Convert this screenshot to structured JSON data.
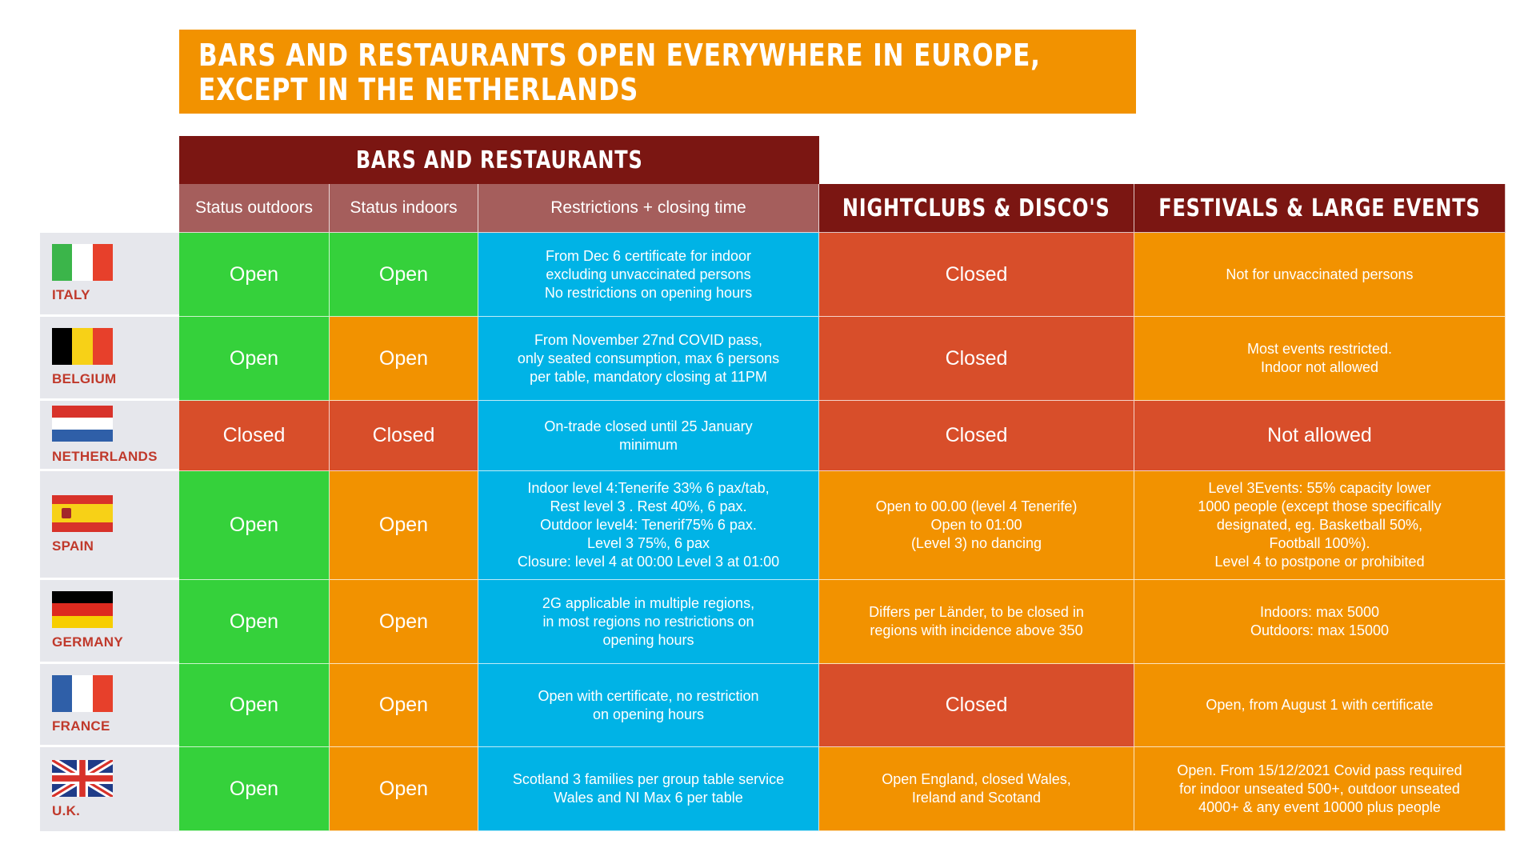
{
  "title": {
    "line1": "BARS AND RESTAURANTS OPEN EVERYWHERE IN EUROPE,",
    "line2": "EXCEPT IN THE NETHERLANDS"
  },
  "headers": {
    "bars": "BARS AND RESTAURANTS",
    "status_outdoors": "Status outdoors",
    "status_indoors": "Status indoors",
    "restrictions": "Restrictions + closing time",
    "nightclubs": "NIGHTCLUBS & DISCO'S",
    "festivals": "FESTIVALS & LARGE EVENTS"
  },
  "colors": {
    "open_green": "#35d13b",
    "open_orange": "#f29200",
    "closed_red": "#d84e2a",
    "restrictions_blue": "#00b3e6",
    "header_dark_red": "#7b1612",
    "title_orange": "#f29200"
  },
  "rows": [
    {
      "country": "ITALY",
      "outdoors": "Open",
      "indoors": "Open",
      "restrictions": "From Dec 6 certificate for indoor\nexcluding unvaccinated persons\nNo restrictions on opening hours",
      "nightclubs": "Closed",
      "festivals": "Not for unvaccinated persons"
    },
    {
      "country": "BELGIUM",
      "outdoors": "Open",
      "indoors": "Open",
      "restrictions": "From November 27nd COVID pass,\nonly seated consumption, max 6 persons\nper table, mandatory closing at 11PM",
      "nightclubs": "Closed",
      "festivals": "Most events restricted.\nIndoor not allowed"
    },
    {
      "country": "NETHERLANDS",
      "outdoors": "Closed",
      "indoors": "Closed",
      "restrictions": "On-trade closed until 25 January\nminimum",
      "nightclubs": "Closed",
      "festivals": "Not allowed"
    },
    {
      "country": "SPAIN",
      "outdoors": "Open",
      "indoors": "Open",
      "restrictions": "Indoor level 4:Tenerife  33% 6 pax/tab,\nRest level 3 . Rest 40%, 6 pax.\nOutdoor level4: Tenerif75% 6 pax.\nLevel 3  75%, 6 pax\nClosure: level 4 at 00:00 Level 3 at 01:00",
      "nightclubs": "Open to 00.00 (level 4 Tenerife)\nOpen to 01:00\n(Level 3) no dancing",
      "festivals": "Level 3Events: 55% capacity lower\n1000 people (except those specifically\ndesignated, eg. Basketball 50%,\nFootball 100%).\nLevel 4 to postpone or prohibited"
    },
    {
      "country": "GERMANY",
      "outdoors": "Open",
      "indoors": "Open",
      "restrictions": "2G applicable in multiple regions,\nin most regions no restrictions on\nopening hours",
      "nightclubs": "Differs per Länder, to be closed in\nregions with incidence above 350",
      "festivals": "Indoors: max 5000\nOutdoors: max 15000"
    },
    {
      "country": "FRANCE",
      "outdoors": "Open",
      "indoors": "Open",
      "restrictions": "Open with certificate, no restriction\non opening hours",
      "nightclubs": "Closed",
      "festivals": "Open, from August 1 with certificate"
    },
    {
      "country": "U.K.",
      "outdoors": "Open",
      "indoors": "Open",
      "restrictions": "Scotland 3 families per group table service\nWales and NI Max 6 per table",
      "nightclubs": "Open England, closed Wales,\nIreland and Scotand",
      "festivals": "Open. From 15/12/2021 Covid pass required\nfor indoor unseated 500+, outdoor unseated\n4000+ & any event 10000 plus people"
    }
  ]
}
